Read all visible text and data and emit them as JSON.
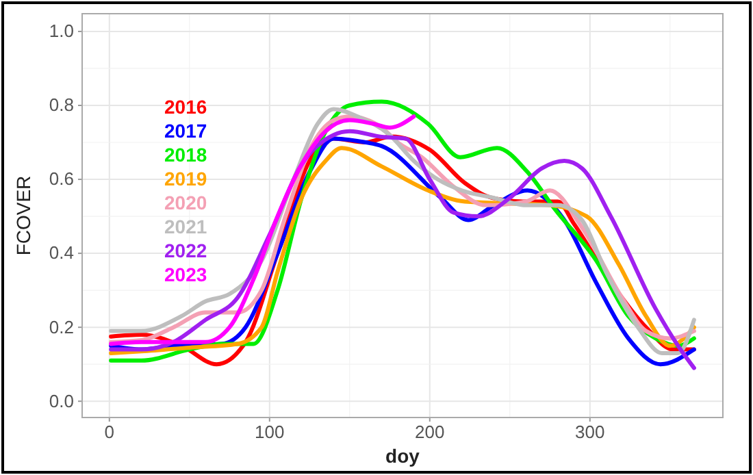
{
  "chart_data": {
    "type": "line",
    "xlabel": "doy",
    "ylabel": "FCOVER",
    "xlim": [
      -17,
      383
    ],
    "xticks": [
      0,
      100,
      200,
      300
    ],
    "ylim": [
      -0.044,
      1.048
    ],
    "yticks": [
      {
        "value": 0,
        "label": "0.0"
      },
      {
        "value": 0.2,
        "label": "0.2"
      },
      {
        "value": 0.4,
        "label": "0.4"
      },
      {
        "value": 0.6,
        "label": "0.6"
      },
      {
        "value": 0.8,
        "label": "0.8"
      },
      {
        "value": 1,
        "label": "1.0"
      }
    ],
    "grid": true,
    "legend": "top left",
    "line_style": "solid",
    "marker": "none",
    "series": [
      {
        "name": "2016",
        "color": "#ff0000",
        "x": [
          1,
          20,
          45,
          67,
          85,
          105,
          125,
          140,
          160,
          176,
          200,
          222,
          239,
          260,
          280,
          290,
          315,
          335,
          352,
          365
        ],
        "values": [
          0.175,
          0.18,
          0.15,
          0.1,
          0.16,
          0.4,
          0.65,
          0.71,
          0.7,
          0.716,
          0.68,
          0.59,
          0.55,
          0.54,
          0.54,
          0.48,
          0.31,
          0.2,
          0.14,
          0.14
        ]
      },
      {
        "name": "2017",
        "color": "#0000ff",
        "x": [
          1,
          20,
          40,
          70,
          85,
          105,
          125,
          140,
          160,
          170,
          207,
          224,
          240,
          261,
          284,
          304,
          324,
          344,
          365
        ],
        "values": [
          0.15,
          0.14,
          0.15,
          0.155,
          0.2,
          0.4,
          0.62,
          0.71,
          0.7,
          0.69,
          0.55,
          0.49,
          0.53,
          0.57,
          0.49,
          0.32,
          0.17,
          0.1,
          0.14
        ]
      },
      {
        "name": "2018",
        "color": "#00ee00",
        "x": [
          1,
          20,
          50,
          70,
          90,
          105,
          120,
          135,
          150,
          170,
          199,
          219,
          242,
          261,
          278,
          304,
          324,
          341,
          355,
          365
        ],
        "values": [
          0.11,
          0.11,
          0.14,
          0.155,
          0.155,
          0.3,
          0.55,
          0.73,
          0.8,
          0.81,
          0.75,
          0.66,
          0.685,
          0.62,
          0.52,
          0.38,
          0.23,
          0.17,
          0.15,
          0.17
        ]
      },
      {
        "name": "2019",
        "color": "#ffa500",
        "x": [
          1,
          20,
          50,
          80,
          95,
          105,
          120,
          135,
          145,
          170,
          199,
          222,
          250,
          275,
          298,
          318,
          335,
          350,
          365
        ],
        "values": [
          0.13,
          0.135,
          0.145,
          0.155,
          0.2,
          0.35,
          0.55,
          0.65,
          0.685,
          0.635,
          0.57,
          0.54,
          0.535,
          0.53,
          0.5,
          0.37,
          0.23,
          0.15,
          0.2
        ]
      },
      {
        "name": "2020",
        "color": "#f4a0b4",
        "x": [
          1,
          20,
          40,
          60,
          80,
          95,
          110,
          125,
          140,
          150,
          170,
          180,
          195,
          215,
          235,
          260,
          275,
          295,
          320,
          335,
          350,
          365
        ],
        "values": [
          0.16,
          0.165,
          0.2,
          0.24,
          0.24,
          0.3,
          0.5,
          0.68,
          0.76,
          0.77,
          0.74,
          0.7,
          0.66,
          0.58,
          0.53,
          0.54,
          0.57,
          0.47,
          0.28,
          0.19,
          0.17,
          0.19
        ]
      },
      {
        "name": "2021",
        "color": "#bebebe",
        "x": [
          1,
          20,
          45,
          60,
          75,
          95,
          115,
          130,
          140,
          155,
          175,
          190,
          205,
          220,
          240,
          260,
          280,
          295,
          310,
          330,
          345,
          355,
          365
        ],
        "values": [
          0.19,
          0.19,
          0.23,
          0.27,
          0.29,
          0.38,
          0.6,
          0.75,
          0.79,
          0.77,
          0.72,
          0.65,
          0.6,
          0.57,
          0.55,
          0.53,
          0.53,
          0.49,
          0.35,
          0.2,
          0.13,
          0.13,
          0.22
        ]
      },
      {
        "name": "2022",
        "color": "#a020f0",
        "x": [
          1,
          20,
          40,
          60,
          80,
          100,
          120,
          140,
          150,
          170,
          185,
          200,
          215,
          230,
          250,
          270,
          284,
          295,
          313,
          341,
          355,
          365
        ],
        "values": [
          0.14,
          0.14,
          0.16,
          0.22,
          0.28,
          0.45,
          0.64,
          0.72,
          0.73,
          0.715,
          0.71,
          0.6,
          0.51,
          0.5,
          0.55,
          0.63,
          0.65,
          0.63,
          0.5,
          0.25,
          0.15,
          0.09
        ]
      },
      {
        "name": "2023",
        "color": "#ff00ff",
        "x": [
          1,
          20,
          40,
          60,
          75,
          90,
          105,
          120,
          135,
          150,
          165,
          175,
          190
        ],
        "values": [
          0.155,
          0.16,
          0.16,
          0.16,
          0.2,
          0.33,
          0.5,
          0.64,
          0.73,
          0.76,
          0.75,
          0.74,
          0.77
        ]
      }
    ]
  }
}
